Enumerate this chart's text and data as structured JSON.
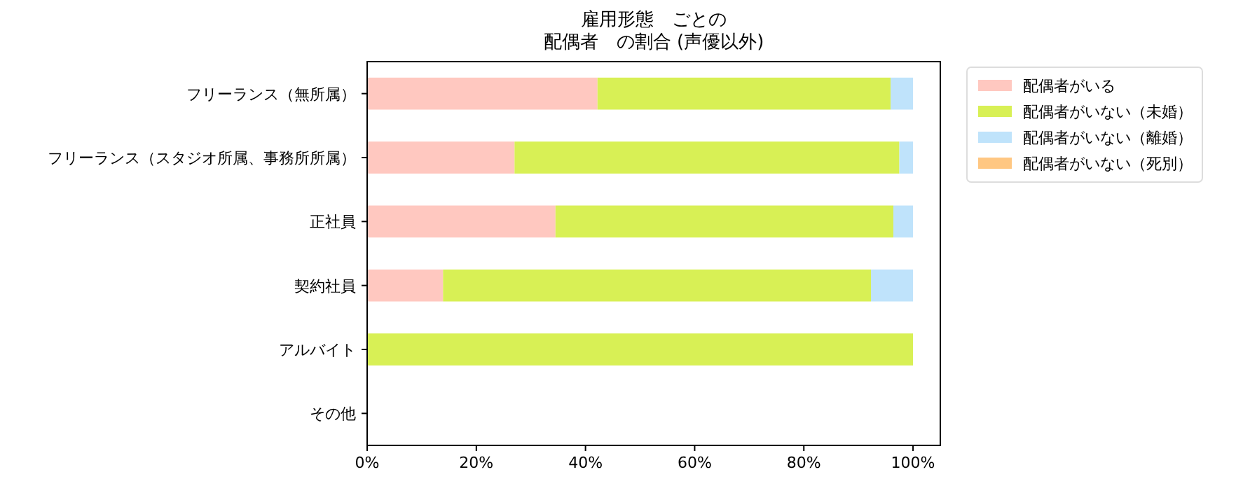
{
  "chart_data": {
    "type": "bar",
    "orientation": "horizontal",
    "stacked": true,
    "title": "雇用形態　ごとの",
    "subtitle": "配偶者　の割合 (声優以外)",
    "categories": [
      "フリーランス（無所属）",
      "フリーランス（スタジオ所属、事務所所属）",
      "正社員",
      "契約社員",
      "アルバイト",
      "その他"
    ],
    "series": [
      {
        "name": "配偶者がいる",
        "color": "#ffc8c0",
        "values": [
          42.2,
          27.0,
          34.5,
          13.9,
          0,
          null
        ]
      },
      {
        "name": "配偶者がいない（未婚）",
        "color": "#d8f055",
        "values": [
          53.7,
          70.5,
          61.9,
          78.4,
          100,
          null
        ]
      },
      {
        "name": "配偶者がいない（離婚）",
        "color": "#bfe3fb",
        "values": [
          4.1,
          2.5,
          3.6,
          7.7,
          0,
          null
        ]
      },
      {
        "name": "配偶者がいない（死別）",
        "color": "#ffc782",
        "values": [
          0,
          0,
          0,
          0,
          0,
          null
        ]
      }
    ],
    "xlim": [
      0,
      105
    ],
    "xticks": [
      {
        "value": 0,
        "label": "0%"
      },
      {
        "value": 20,
        "label": "20%"
      },
      {
        "value": 40,
        "label": "40%"
      },
      {
        "value": 60,
        "label": "60%"
      },
      {
        "value": 80,
        "label": "80%"
      },
      {
        "value": 100,
        "label": "100%"
      }
    ],
    "legend": "top right"
  }
}
